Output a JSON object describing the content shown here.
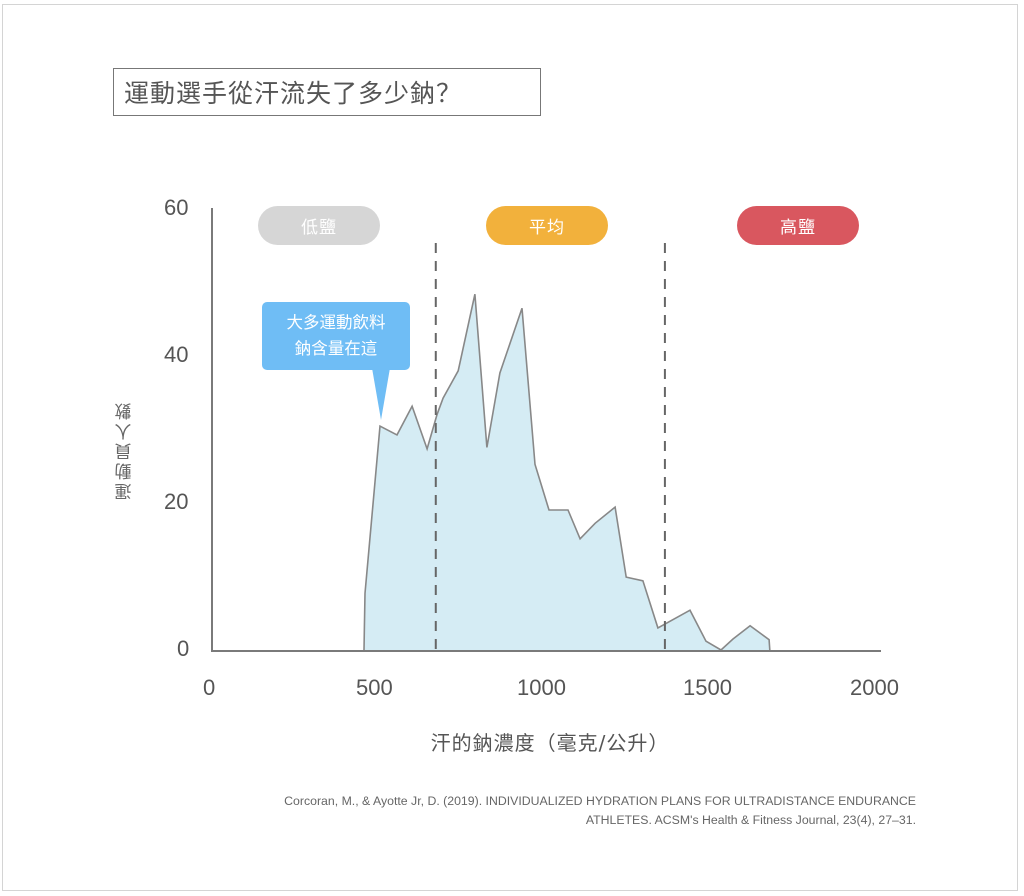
{
  "title": "運動選手從汗流失了多少鈉？",
  "chart_data": {
    "type": "area",
    "title": "運動選手從汗流失了多少鈉？",
    "xlabel": "汗的鈉濃度（毫克/公升）",
    "ylabel": "運動員人數",
    "xlim": [
      0,
      2000
    ],
    "ylim": [
      0,
      60
    ],
    "x_ticks": [
      "0",
      "500",
      "1000",
      "1500",
      "2000"
    ],
    "y_ticks": [
      "0",
      "20",
      "40",
      "60"
    ],
    "grid": false,
    "legend": null,
    "series": [
      {
        "name": "運動員人數",
        "fill_color": "#d5ecf4",
        "line_color": "#888888",
        "x": [
          455,
          458,
          503,
          554,
          599,
          644,
          674,
          692,
          737,
          787,
          823,
          862,
          928,
          967,
          1009,
          1066,
          1102,
          1147,
          1207,
          1240,
          1290,
          1335,
          1431,
          1479,
          1524,
          1560,
          1611,
          1668,
          1670
        ],
        "values": [
          0,
          7.7,
          30.4,
          29.2,
          33.1,
          27.3,
          32.0,
          34.2,
          37.9,
          48.3,
          27.5,
          37.6,
          46.4,
          25.2,
          19.0,
          19.0,
          15.1,
          17.2,
          19.4,
          9.9,
          9.4,
          3.0,
          5.4,
          1.2,
          0,
          1.5,
          3.3,
          1.4,
          0
        ]
      }
    ],
    "dividers": [
      {
        "x": 670,
        "style": "dashed"
      },
      {
        "x": 1356,
        "style": "dashed"
      }
    ],
    "regions": [
      {
        "label": "低鹽",
        "color": "#d6d6d6"
      },
      {
        "label": "平均",
        "color": "#f2b13c"
      },
      {
        "label": "高鹽",
        "color": "#d9575f"
      }
    ],
    "annotations": [
      {
        "text": "大多運動飲料\n鈉含量在這",
        "line1": "大多運動飲料",
        "line2": "鈉含量在這",
        "points_to_x": 503,
        "color": "#6fbdf5"
      }
    ]
  },
  "citation": {
    "line1": "Corcoran, M., & Ayotte Jr, D. (2019). INDIVIDUALIZED HYDRATION PLANS FOR ULTRADISTANCE ENDURANCE",
    "line2": "ATHLETES. ACSM's Health & Fitness Journal, 23(4), 27–31."
  }
}
